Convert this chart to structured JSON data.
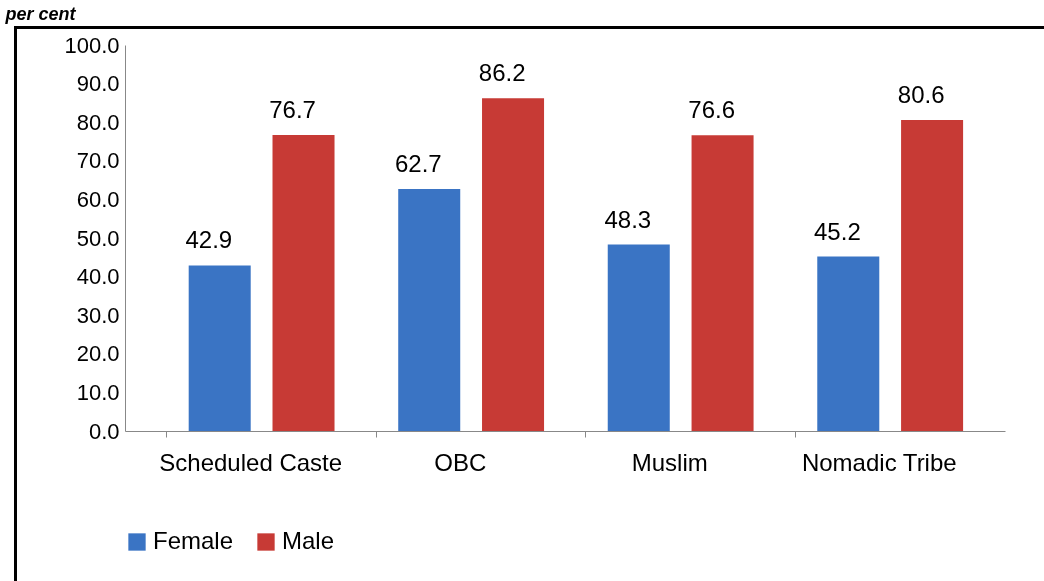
{
  "chart_data": {
    "type": "bar",
    "ylabel": "per cent",
    "categories": [
      "Scheduled Caste",
      "OBC",
      "Muslim",
      "Nomadic Tribe"
    ],
    "series": [
      {
        "name": "Female",
        "color": "#3a74c4",
        "values": [
          42.9,
          62.7,
          48.3,
          45.2
        ]
      },
      {
        "name": "Male",
        "color": "#c73a35",
        "values": [
          76.7,
          86.2,
          76.6,
          80.6
        ]
      }
    ],
    "ylim": [
      0,
      100
    ],
    "yticks": [
      {
        "value": 0,
        "label": "0.0"
      },
      {
        "value": 10,
        "label": "10.0"
      },
      {
        "value": 20,
        "label": "20.0"
      },
      {
        "value": 30,
        "label": "30.0"
      },
      {
        "value": 40,
        "label": "40.0"
      },
      {
        "value": 50,
        "label": "50.0"
      },
      {
        "value": 60,
        "label": "60.0"
      },
      {
        "value": 70,
        "label": "70.0"
      },
      {
        "value": 80,
        "label": "80.0"
      },
      {
        "value": 90,
        "label": "90.0"
      },
      {
        "value": 100,
        "label": "100.0"
      }
    ],
    "data_labels": true,
    "legend": "bottom",
    "grid": false
  }
}
